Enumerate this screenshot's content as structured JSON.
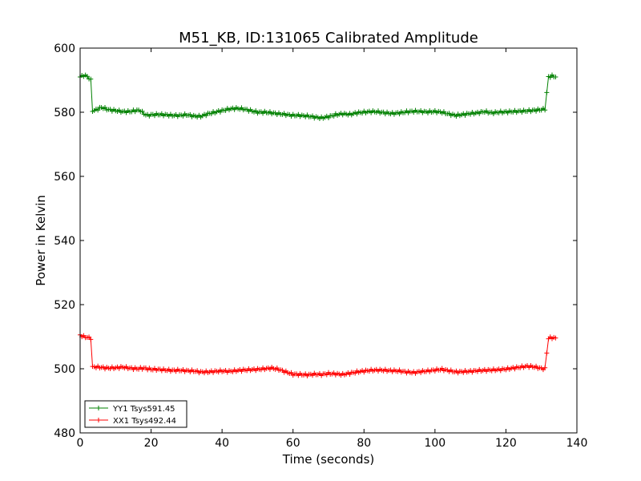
{
  "chart_data": {
    "type": "line",
    "title": "M51_KB, ID:131065 Calibrated Amplitude",
    "xlabel": "Time (seconds)",
    "ylabel": "Power in Kelvin",
    "xlim": [
      0,
      140
    ],
    "ylim": [
      480,
      600
    ],
    "xticks": [
      "0",
      "20",
      "40",
      "60",
      "80",
      "100",
      "120",
      "140"
    ],
    "yticks": [
      "480",
      "500",
      "520",
      "540",
      "560",
      "580",
      "600"
    ],
    "grid": false,
    "legend_position": "lower-left",
    "series": [
      {
        "name": "YY1 Tsys591.45",
        "color": "#008000",
        "marker": "+",
        "x": [
          0,
          1,
          2,
          3,
          3.5,
          4,
          5,
          6,
          8,
          10,
          12,
          14,
          16,
          17,
          18,
          19,
          20,
          22,
          24,
          26,
          28,
          30,
          32,
          34,
          36,
          38,
          40,
          42,
          44,
          46,
          48,
          50,
          52,
          54,
          56,
          58,
          60,
          62,
          64,
          66,
          68,
          70,
          72,
          74,
          76,
          78,
          80,
          82,
          84,
          86,
          88,
          90,
          92,
          94,
          96,
          98,
          100,
          102,
          104,
          106,
          108,
          110,
          112,
          114,
          116,
          118,
          120,
          122,
          124,
          126,
          128,
          130,
          131,
          131.5,
          132,
          133,
          134
        ],
        "y": [
          591,
          591.5,
          591.2,
          590,
          580.5,
          580.5,
          581,
          581.5,
          580.8,
          580.5,
          580.2,
          580.2,
          580.6,
          580.5,
          579.5,
          579,
          579.2,
          579.3,
          579.2,
          579,
          579,
          579.2,
          578.8,
          578.7,
          579.5,
          580,
          580.5,
          581,
          581.2,
          581,
          580.5,
          580,
          580,
          579.8,
          579.5,
          579.3,
          579,
          579,
          578.8,
          578.5,
          578.2,
          578.6,
          579.2,
          579.5,
          579.3,
          579.8,
          580,
          580.2,
          580.1,
          579.8,
          579.6,
          579.8,
          580.1,
          580.3,
          580.2,
          580.1,
          580.2,
          580,
          579.4,
          579,
          579.3,
          579.6,
          579.8,
          580.2,
          579.8,
          580,
          580.1,
          580.2,
          580.3,
          580.4,
          580.6,
          580.8,
          581,
          586,
          591,
          591.3,
          591
        ],
        "legend_label": "YY1 Tsys591.45"
      },
      {
        "name": "XX1 Tsys492.44",
        "color": "#ff0000",
        "marker": "+",
        "x": [
          0,
          1,
          2,
          3,
          3.5,
          4,
          5,
          6,
          8,
          10,
          12,
          14,
          16,
          18,
          20,
          22,
          24,
          26,
          28,
          30,
          32,
          34,
          36,
          38,
          40,
          42,
          44,
          46,
          48,
          50,
          52,
          54,
          56,
          58,
          60,
          62,
          64,
          66,
          68,
          70,
          72,
          74,
          76,
          78,
          80,
          82,
          84,
          86,
          88,
          90,
          92,
          94,
          96,
          98,
          100,
          102,
          104,
          106,
          108,
          110,
          112,
          114,
          116,
          118,
          120,
          122,
          124,
          126,
          128,
          130,
          131,
          131.5,
          132,
          133,
          134
        ],
        "y": [
          510.5,
          510,
          509.8,
          509.5,
          500.5,
          500.6,
          500.5,
          500.4,
          500.2,
          500.3,
          500.5,
          500.2,
          500,
          500.2,
          499.8,
          499.8,
          499.6,
          499.5,
          499.5,
          499.4,
          499.3,
          499,
          499,
          499.2,
          499.3,
          499.2,
          499.4,
          499.6,
          499.7,
          499.8,
          500,
          500.2,
          499.8,
          499,
          498.3,
          498.2,
          498.1,
          498.3,
          498.2,
          498.5,
          498.4,
          498.2,
          498.6,
          499,
          499.3,
          499.5,
          499.6,
          499.5,
          499.4,
          499.3,
          499,
          498.8,
          499.1,
          499.3,
          499.6,
          499.8,
          499.4,
          499,
          499.1,
          499.2,
          499.4,
          499.5,
          499.6,
          499.7,
          499.9,
          500.2,
          500.5,
          500.8,
          500.6,
          500.1,
          500,
          505,
          509.5,
          509.7,
          509.6
        ],
        "legend_label": "XX1 Tsys492.44"
      }
    ]
  }
}
